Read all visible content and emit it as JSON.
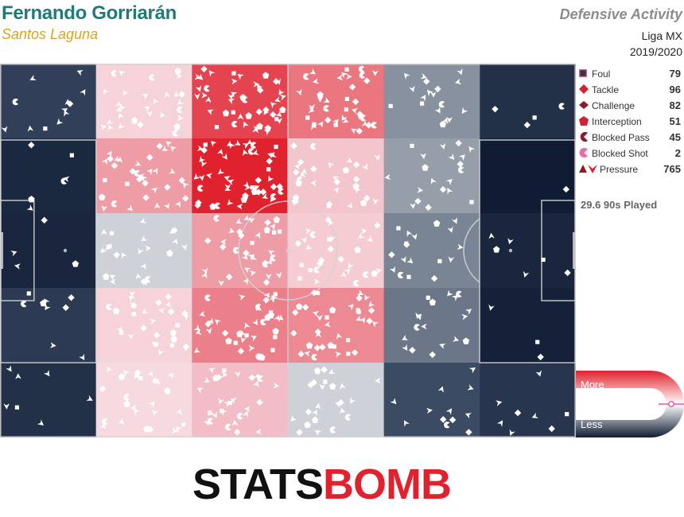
{
  "header": {
    "player": "Fernando Gorriarán",
    "team": "Santos Laguna",
    "title": "Defensive Activity",
    "competition": "Liga MX",
    "season": "2019/2020"
  },
  "legend": [
    {
      "key": "foul",
      "label": "Foul",
      "count": "79",
      "color": "#2a3550"
    },
    {
      "key": "tackle",
      "label": "Tackle",
      "count": "96",
      "color": "#d32233"
    },
    {
      "key": "challenge",
      "label": "Challenge",
      "count": "82",
      "color": "#8b1a2a"
    },
    {
      "key": "interception",
      "label": "Interception",
      "count": "51",
      "color": "#d32233"
    },
    {
      "key": "blocked_pass",
      "label": "Blocked Pass",
      "count": "45",
      "color": "#8b1a2a"
    },
    {
      "key": "blocked_shot",
      "label": "Blocked Shot",
      "count": "2",
      "color": "#f06aa0"
    },
    {
      "key": "pressure",
      "label": "Pressure",
      "count": "765",
      "color": "#d32233"
    }
  ],
  "played_text": "29.6 90s Played",
  "scale": {
    "more_label": "More",
    "less_label": "Less"
  },
  "logo": {
    "part1": "STATS",
    "part2": "BOMB"
  },
  "colors": {
    "teal": "#1f7a7a",
    "gold": "#d8a31e",
    "high": "#e0222e",
    "low": "#0f1c33"
  },
  "chart_data": {
    "type": "heatmap",
    "description_of_grid": "6 columns along pitch length by 5 rows across width",
    "intensity_rows": [
      [
        0.14,
        0.58,
        0.92,
        0.8,
        0.3,
        0.08
      ],
      [
        0.05,
        0.72,
        1.0,
        0.62,
        0.32,
        0.0
      ],
      [
        0.04,
        0.42,
        0.72,
        0.6,
        0.28,
        0.04
      ],
      [
        0.12,
        0.58,
        0.78,
        0.76,
        0.26,
        0.02
      ],
      [
        0.08,
        0.56,
        0.64,
        0.42,
        0.18,
        0.1
      ]
    ],
    "marker_counts": [
      [
        12,
        30,
        48,
        40,
        18,
        4
      ],
      [
        6,
        36,
        55,
        32,
        20,
        1
      ],
      [
        4,
        24,
        38,
        30,
        18,
        6
      ],
      [
        9,
        30,
        40,
        38,
        18,
        3
      ],
      [
        7,
        28,
        32,
        24,
        12,
        8
      ]
    ]
  }
}
